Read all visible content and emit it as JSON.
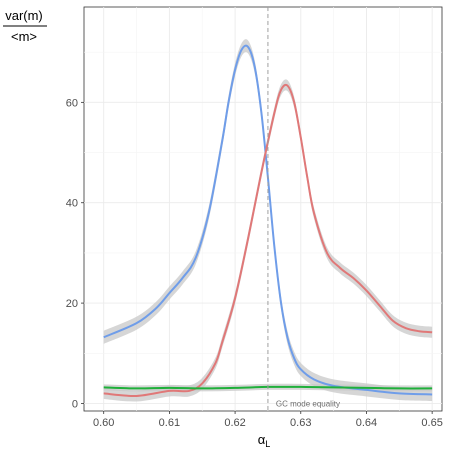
{
  "chart_data": {
    "type": "line",
    "title": "",
    "ylabel_numerator": "var(m)",
    "ylabel_denominator": "<m>",
    "xlabel_main": "α",
    "xlabel_sub": "L",
    "xlim": [
      0.597,
      0.6515
    ],
    "ylim": [
      -1.5,
      79
    ],
    "x_ticks": [
      0.6,
      0.61,
      0.62,
      0.63,
      0.64,
      0.65
    ],
    "x_tick_labels": [
      "0.60",
      "0.61",
      "0.62",
      "0.63",
      "0.64",
      "0.65"
    ],
    "y_ticks": [
      0,
      20,
      40,
      60
    ],
    "y_tick_labels": [
      "0",
      "20",
      "40",
      "60"
    ],
    "grid": true,
    "legend": "none",
    "annotation": {
      "text": "GC mode equality",
      "x": 0.625,
      "y": 0
    },
    "vline": {
      "x": 0.625,
      "style": "dashed",
      "color": "#9e9e9e"
    },
    "ribbon_color": "#c8c8c8",
    "series": [
      {
        "color": "#6f9de9",
        "x": [
          0.6,
          0.605,
          0.608,
          0.61,
          0.612,
          0.614,
          0.616,
          0.618,
          0.619,
          0.62,
          0.621,
          0.622,
          0.623,
          0.624,
          0.625,
          0.626,
          0.627,
          0.628,
          0.629,
          0.63,
          0.632,
          0.635,
          0.64,
          0.645,
          0.65
        ],
        "y": [
          13.2,
          16.0,
          19.0,
          22.0,
          25.0,
          29.0,
          38.0,
          52.0,
          60.0,
          66.5,
          70.5,
          71.0,
          67.0,
          58.0,
          45.0,
          31.0,
          20.0,
          13.0,
          9.0,
          6.8,
          4.8,
          3.5,
          2.7,
          2.0,
          1.8
        ],
        "ci": 1.3
      },
      {
        "color": "#e07878",
        "x": [
          0.6,
          0.605,
          0.61,
          0.613,
          0.615,
          0.617,
          0.618,
          0.62,
          0.622,
          0.624,
          0.626,
          0.627,
          0.628,
          0.629,
          0.63,
          0.631,
          0.632,
          0.634,
          0.636,
          0.638,
          0.64,
          0.642,
          0.644,
          0.646,
          0.648,
          0.65
        ],
        "y": [
          2.0,
          1.5,
          2.5,
          2.5,
          4.0,
          8.0,
          12.0,
          21.0,
          33.0,
          46.0,
          58.0,
          62.5,
          63.3,
          60.0,
          53.0,
          45.0,
          38.0,
          30.0,
          27.0,
          25.0,
          22.5,
          19.5,
          16.5,
          15.0,
          14.4,
          14.2
        ],
        "ci": 1.1
      },
      {
        "color": "#1fb03a",
        "x": [
          0.6,
          0.605,
          0.61,
          0.615,
          0.62,
          0.625,
          0.63,
          0.635,
          0.64,
          0.645,
          0.65
        ],
        "y": [
          3.2,
          3.0,
          3.1,
          3.0,
          3.1,
          3.3,
          3.3,
          3.2,
          3.1,
          3.0,
          3.0
        ],
        "ci": 0.6
      }
    ]
  }
}
